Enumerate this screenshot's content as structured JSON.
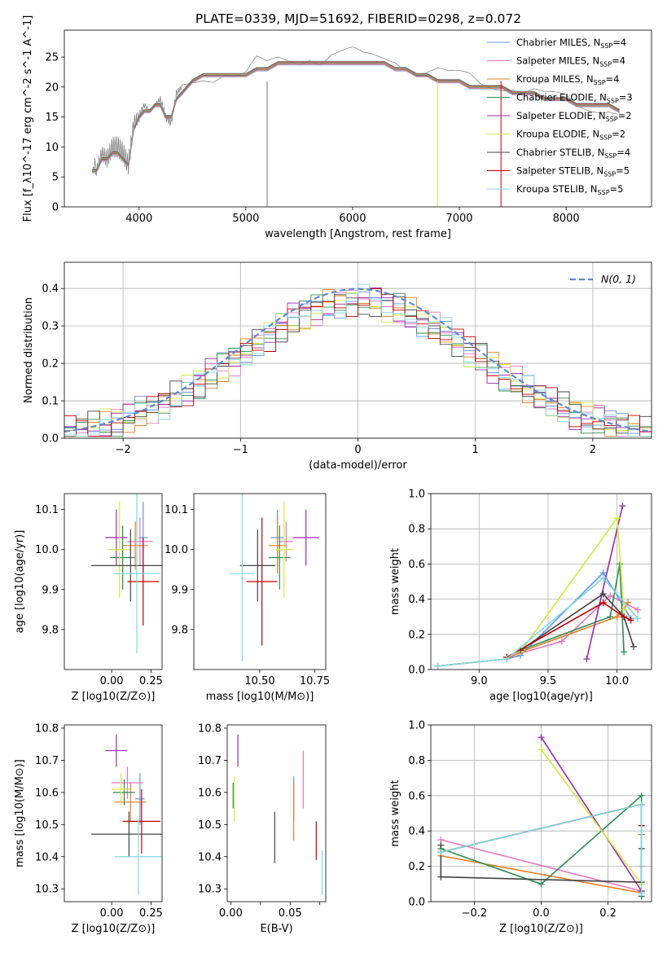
{
  "title": "PLATE=0339, MJD=51692, FIBERID=0298, z=0.072",
  "colors": [
    "#6495ed",
    "#e377c2",
    "#e67e22",
    "#2e8b57",
    "#9c27b0",
    "#d4ea3a",
    "#444444",
    "#c00000",
    "#7fd8e0"
  ],
  "chart_data": [
    {
      "id": "spectrum",
      "type": "line",
      "xlabel": "wavelength [Angstrom, rest frame]",
      "ylabel": "Flux [f_λ10^-17 erg cm^-2 s^-1 A^-1]",
      "xlim": [
        3300,
        8800
      ],
      "ylim": [
        0,
        29.5
      ],
      "xticks": [
        4000,
        5000,
        6000,
        7000,
        8000
      ],
      "yticks": [
        0,
        5,
        10,
        15,
        20,
        25
      ],
      "grid": false,
      "legend_position": "top-right",
      "data_x": [
        3560,
        3600,
        3650,
        3700,
        3750,
        3800,
        3850,
        3900,
        3950,
        4000,
        4050,
        4100,
        4150,
        4200,
        4250,
        4300,
        4350,
        4400,
        4500,
        4600,
        4700,
        4800,
        4900,
        5000,
        5100,
        5200,
        5300,
        5400,
        5500,
        5600,
        5700,
        5800,
        5900,
        6000,
        6100,
        6200,
        6300,
        6400,
        6500,
        6600,
        6700,
        6800,
        6900,
        7000,
        7100,
        7200,
        7300,
        7400,
        7500,
        7600,
        7700,
        7800,
        7900,
        8000,
        8100,
        8200,
        8300,
        8400,
        8500
      ],
      "data_y": [
        7,
        6,
        9,
        8,
        10,
        10,
        9,
        7,
        14,
        15,
        17,
        16,
        17,
        18,
        15,
        14,
        19,
        20,
        21,
        22,
        22,
        23,
        22,
        22,
        24,
        23,
        24,
        24,
        24,
        25,
        24,
        25,
        25,
        25,
        24,
        24,
        24,
        24,
        23,
        22,
        22,
        22,
        21,
        21,
        21,
        20,
        20,
        20,
        20,
        19,
        19,
        18,
        18,
        18,
        17,
        17,
        17,
        17,
        16
      ],
      "model_y": [
        6,
        6,
        8,
        8,
        9,
        9,
        8,
        7,
        13,
        15,
        16,
        16,
        17,
        17,
        15,
        15,
        18,
        19,
        21,
        22,
        22,
        22,
        22,
        22,
        23,
        23,
        24,
        24,
        24,
        24,
        24,
        24,
        24,
        24,
        24,
        24,
        24,
        23,
        23,
        22,
        22,
        21,
        21,
        21,
        20,
        20,
        20,
        20,
        19,
        19,
        19,
        18,
        18,
        18,
        17,
        17,
        17,
        17,
        16
      ],
      "legend": [
        {
          "pre": "Chabrier MILES, N",
          "sub": "SSP",
          "post": "=4"
        },
        {
          "pre": "Salpeter MILES, N",
          "sub": "SSP",
          "post": "=4"
        },
        {
          "pre": "Kroupa MILES, N",
          "sub": "SSP",
          "post": "=4"
        },
        {
          "pre": "Chabrier ELODIE, N",
          "sub": "SSP",
          "post": "=3"
        },
        {
          "pre": "Salpeter ELODIE, N",
          "sub": "SSP",
          "post": "=2"
        },
        {
          "pre": "Kroupa ELODIE, N",
          "sub": "SSP",
          "post": "=2"
        },
        {
          "pre": "Chabrier STELIB, N",
          "sub": "SSP",
          "post": "=4"
        },
        {
          "pre": "Salpeter STELIB, N",
          "sub": "SSP",
          "post": "=5"
        },
        {
          "pre": "Kroupa STELIB, N",
          "sub": "SSP",
          "post": "=5"
        }
      ]
    },
    {
      "id": "residuals",
      "type": "line",
      "xlabel": "(data-model)/error",
      "ylabel": "Normed distribution",
      "xlim": [
        -2.5,
        2.5
      ],
      "ylim": [
        0,
        0.47
      ],
      "xticks": [
        -2,
        -1,
        0,
        1,
        2
      ],
      "yticks": [
        0.0,
        0.1,
        0.2,
        0.3,
        0.4
      ],
      "grid": true,
      "legend_position": "top-right",
      "legend_label": "N(0, 1)",
      "bin_width": 0.1
    },
    {
      "id": "z-age",
      "type": "scatter",
      "xlabel": "Z [log10(Z/Z⊙)]",
      "ylabel": "age [log10(age/yr)]",
      "xlim": [
        -0.3,
        0.32
      ],
      "ylim": [
        9.7,
        10.14
      ],
      "xticks": [
        0.0,
        0.25
      ],
      "yticks": [
        9.8,
        9.9,
        10.0,
        10.1
      ],
      "points": [
        {
          "x": 0.2,
          "y": 10.03,
          "xerr": 0.03,
          "yerr": 0.09
        },
        {
          "x": 0.18,
          "y": 10.02,
          "xerr": 0.08,
          "yerr": 0.06
        },
        {
          "x": 0.15,
          "y": 10.01,
          "xerr": 0.08,
          "yerr": 0.06
        },
        {
          "x": 0.07,
          "y": 9.98,
          "xerr": 0.08,
          "yerr": 0.08
        },
        {
          "x": 0.03,
          "y": 10.03,
          "xerr": 0.07,
          "yerr": 0.07
        },
        {
          "x": 0.05,
          "y": 10.0,
          "xerr": 0.07,
          "yerr": 0.12
        },
        {
          "x": 0.12,
          "y": 9.96,
          "xerr": 0.25,
          "yerr": 0.09
        },
        {
          "x": 0.2,
          "y": 9.92,
          "xerr": 0.1,
          "yerr": 0.11
        },
        {
          "x": 0.16,
          "y": 9.94,
          "xerr": 0.15,
          "yerr": 0.2
        }
      ]
    },
    {
      "id": "mass-age",
      "type": "scatter",
      "xlabel": "mass [log10(M/M⊙)]",
      "ylabel": "",
      "xlim": [
        10.2,
        10.8
      ],
      "ylim": [
        9.7,
        10.14
      ],
      "xticks": [
        10.5,
        10.75
      ],
      "yticks": [
        9.8,
        9.9,
        10.0,
        10.1
      ],
      "points": [
        {
          "x": 10.58,
          "y": 10.03,
          "xerr": 0.03,
          "yerr": 0.07
        },
        {
          "x": 10.62,
          "y": 10.02,
          "xerr": 0.03,
          "yerr": 0.05
        },
        {
          "x": 10.58,
          "y": 10.01,
          "xerr": 0.04,
          "yerr": 0.07
        },
        {
          "x": 10.59,
          "y": 9.98,
          "xerr": 0.05,
          "yerr": 0.08
        },
        {
          "x": 10.71,
          "y": 10.03,
          "xerr": 0.06,
          "yerr": 0.07
        },
        {
          "x": 10.61,
          "y": 10.0,
          "xerr": 0.04,
          "yerr": 0.12
        },
        {
          "x": 10.49,
          "y": 9.96,
          "xerr": 0.08,
          "yerr": 0.09
        },
        {
          "x": 10.51,
          "y": 9.92,
          "xerr": 0.07,
          "yerr": 0.16
        },
        {
          "x": 10.42,
          "y": 9.94,
          "xerr": 0.06,
          "yerr": 0.22
        }
      ]
    },
    {
      "id": "age-weight",
      "type": "line",
      "xlabel": "age [log10(age/yr)]",
      "ylabel": "mass weight",
      "xlim": [
        8.65,
        10.25
      ],
      "ylim": [
        0,
        1.0
      ],
      "xticks": [
        9.0,
        9.5,
        10.0
      ],
      "yticks": [
        0.0,
        0.2,
        0.4,
        0.6,
        0.8,
        1.0
      ],
      "grid": true,
      "series": [
        {
          "x": [
            8.7,
            9.2,
            9.3,
            9.9,
            10.1
          ],
          "y": [
            0.02,
            0.06,
            0.08,
            0.55,
            0.29
          ]
        },
        {
          "x": [
            9.2,
            9.6,
            9.95,
            10.15
          ],
          "y": [
            0.07,
            0.16,
            0.42,
            0.34
          ]
        },
        {
          "x": [
            8.7,
            9.2,
            9.3,
            10.0,
            10.08
          ],
          "y": [
            0.02,
            0.06,
            0.1,
            0.3,
            0.38
          ]
        },
        {
          "x": [
            9.3,
            9.95,
            10.02,
            10.05
          ],
          "y": [
            0.11,
            0.3,
            0.6,
            0.1
          ]
        },
        {
          "x": [
            9.78,
            10.04
          ],
          "y": [
            0.06,
            0.93
          ]
        },
        {
          "x": [
            9.3,
            10.0,
            10.05
          ],
          "y": [
            0.1,
            0.86,
            0.34
          ]
        },
        {
          "x": [
            9.3,
            9.9,
            10.05,
            10.12
          ],
          "y": [
            0.11,
            0.43,
            0.3,
            0.13
          ]
        },
        {
          "x": [
            9.2,
            9.9,
            10.05,
            10.1
          ],
          "y": [
            0.07,
            0.38,
            0.3,
            0.28
          ]
        },
        {
          "x": [
            8.7,
            9.2,
            9.9,
            10.15
          ],
          "y": [
            0.02,
            0.06,
            0.52,
            0.29
          ]
        }
      ]
    },
    {
      "id": "z-mass",
      "type": "scatter",
      "xlabel": "Z [log10(Z/Z⊙)]",
      "ylabel": "mass [log10(M/M⊙)]",
      "xlim": [
        -0.3,
        0.32
      ],
      "ylim": [
        10.26,
        10.81
      ],
      "xticks": [
        0.0,
        0.25
      ],
      "yticks": [
        10.3,
        10.4,
        10.5,
        10.6,
        10.7,
        10.8
      ],
      "points": [
        {
          "x": 0.18,
          "y": 10.58,
          "xerr": 0.03,
          "yerr": 0.08
        },
        {
          "x": 0.1,
          "y": 10.63,
          "xerr": 0.1,
          "yerr": 0.05
        },
        {
          "x": 0.12,
          "y": 10.57,
          "xerr": 0.1,
          "yerr": 0.06
        },
        {
          "x": 0.08,
          "y": 10.6,
          "xerr": 0.07,
          "yerr": 0.04
        },
        {
          "x": 0.03,
          "y": 10.73,
          "xerr": 0.07,
          "yerr": 0.05
        },
        {
          "x": 0.06,
          "y": 10.61,
          "xerr": 0.06,
          "yerr": 0.05
        },
        {
          "x": 0.11,
          "y": 10.47,
          "xerr": 0.24,
          "yerr": 0.07
        },
        {
          "x": 0.19,
          "y": 10.51,
          "xerr": 0.12,
          "yerr": 0.1
        },
        {
          "x": 0.17,
          "y": 10.4,
          "xerr": 0.15,
          "yerr": 0.12
        }
      ]
    },
    {
      "id": "ebv-mass",
      "type": "scatter",
      "xlabel": "E(B-V)",
      "ylabel": "",
      "xlim": [
        -0.003,
        0.08
      ],
      "ylim": [
        10.26,
        10.81
      ],
      "xticks": [
        0.0,
        0.025,
        0.05,
        0.075
      ],
      "xtick_labels": [
        "0.00",
        "",
        "0.05",
        ""
      ],
      "yticks": [
        10.3,
        10.4,
        10.5,
        10.6,
        10.7,
        10.8
      ],
      "points": [
        {
          "x": 0.053,
          "y": 10.58,
          "yerr": 0.07
        },
        {
          "x": 0.061,
          "y": 10.64,
          "yerr": 0.09
        },
        {
          "x": 0.053,
          "y": 10.54,
          "yerr": 0.09
        },
        {
          "x": 0.002,
          "y": 10.59,
          "yerr": 0.04
        },
        {
          "x": 0.006,
          "y": 10.73,
          "yerr": 0.05
        },
        {
          "x": 0.003,
          "y": 10.58,
          "yerr": 0.07
        },
        {
          "x": 0.037,
          "y": 10.46,
          "yerr": 0.08
        },
        {
          "x": 0.072,
          "y": 10.45,
          "yerr": 0.06
        },
        {
          "x": 0.077,
          "y": 10.35,
          "yerr": 0.07
        }
      ]
    },
    {
      "id": "z-weight",
      "type": "line",
      "xlabel": "Z [log10(Z/Z⊙)]",
      "ylabel": "mass weight",
      "xlim": [
        -0.33,
        0.33
      ],
      "ylim": [
        0,
        1.0
      ],
      "xticks": [
        -0.2,
        0.0,
        0.2
      ],
      "yticks": [
        0.0,
        0.2,
        0.4,
        0.6,
        0.8,
        1.0
      ],
      "grid": true,
      "series": [
        {
          "x": [
            -0.3,
            0.3,
            0.3,
            0.3
          ],
          "y": [
            0.28,
            0.55,
            0.06,
            0.03
          ]
        },
        {
          "x": [
            -0.3,
            0.3,
            0.3
          ],
          "y": [
            0.35,
            0.06,
            0.2
          ]
        },
        {
          "x": [
            -0.3,
            0.3,
            0.3
          ],
          "y": [
            0.26,
            0.05,
            0.38
          ]
        },
        {
          "x": [
            -0.3,
            0.0,
            0.3,
            0.3
          ],
          "y": [
            0.3,
            0.1,
            0.6,
            0.03
          ]
        },
        {
          "x": [
            0.0,
            0.3
          ],
          "y": [
            0.93,
            0.06
          ]
        },
        {
          "x": [
            0.0,
            0.3
          ],
          "y": [
            0.86,
            0.1
          ]
        },
        {
          "x": [
            -0.3,
            -0.3,
            0.3,
            0.3
          ],
          "y": [
            0.32,
            0.14,
            0.11,
            0.3
          ]
        },
        {
          "x": [
            -0.3,
            0.3,
            0.3
          ],
          "y": [
            0.28,
            0.55,
            0.43
          ]
        },
        {
          "x": [
            -0.3,
            0.3,
            0.3
          ],
          "y": [
            0.28,
            0.55,
            0.05
          ]
        }
      ]
    }
  ]
}
